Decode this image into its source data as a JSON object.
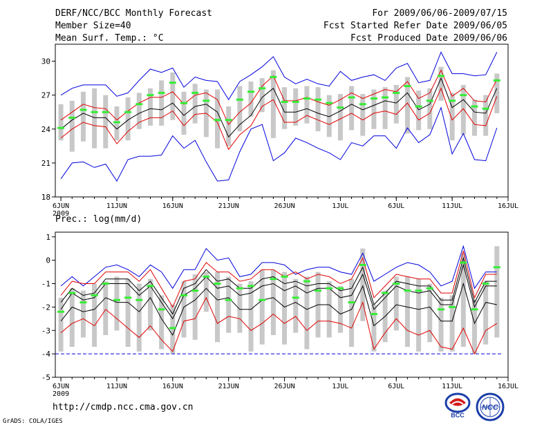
{
  "header": {
    "line1": "DERF/NCC/BCC Monthly Forecast",
    "line2": "Member Size=40",
    "line3": "Mean Surf. Temp.: °C",
    "right1": "For 2009/06/06-2009/07/15",
    "right2": "Fcst Started Refer Date 2009/06/05",
    "right3": "Fcst Produced Date 2009/06/06"
  },
  "footer": {
    "url": "http://cmdp.ncc.cma.gov.cn",
    "credit": "GrADS: COLA/IGES"
  },
  "logos": {
    "bcc": "BCC",
    "ncc": "NCC"
  },
  "colors": {
    "box": "#c8c8c8",
    "median": "#000000",
    "quartile": "#e00000",
    "extreme": "#0000dd",
    "mean": "#33ee33",
    "floor": "#0000dd"
  },
  "chart_data": [
    {
      "type": "line",
      "title": "Mean Surf. Temp.: °C",
      "ylabel": "°C",
      "ylim": [
        18,
        31.5
      ],
      "yticks": [
        18,
        21,
        24,
        27,
        30
      ],
      "xlim": [
        0,
        40
      ],
      "xticks": [
        {
          "x": 0.5,
          "label": "6JUN"
        },
        {
          "x": 5.5,
          "label": "11JUN"
        },
        {
          "x": 10.5,
          "label": "16JUN"
        },
        {
          "x": 15.5,
          "label": "21JUN"
        },
        {
          "x": 20.5,
          "label": "26JUN"
        },
        {
          "x": 25.5,
          "label": "1JUL"
        },
        {
          "x": 30.5,
          "label": "6JUL"
        },
        {
          "x": 35.5,
          "label": "11JUL"
        },
        {
          "x": 40.5,
          "label": "16JUL"
        }
      ],
      "year_label": "2009",
      "series": [
        {
          "name": "median",
          "values": [
            24.0,
            24.8,
            25.4,
            25.0,
            25.0,
            24.0,
            24.8,
            25.4,
            25.8,
            25.7,
            26.3,
            25.2,
            26.0,
            26.2,
            25.5,
            23.3,
            24.4,
            25.2,
            26.8,
            27.6,
            25.5,
            25.5,
            25.8,
            25.4,
            25.1,
            25.6,
            26.2,
            25.7,
            26.1,
            26.5,
            26.3,
            27.2,
            25.7,
            26.2,
            28.5,
            25.9,
            26.6,
            25.5,
            25.4,
            27.6
          ]
        },
        {
          "name": "upper_quartile",
          "values": [
            24.8,
            25.5,
            26.2,
            25.9,
            25.8,
            24.8,
            25.6,
            26.3,
            26.8,
            26.8,
            27.3,
            26.2,
            27.0,
            27.2,
            26.6,
            24.4,
            25.5,
            26.3,
            27.8,
            28.7,
            26.5,
            26.5,
            26.8,
            26.4,
            26.1,
            26.6,
            27.2,
            26.7,
            27.1,
            27.5,
            27.3,
            28.2,
            26.7,
            27.2,
            29.2,
            26.9,
            27.6,
            26.5,
            26.4,
            28.4
          ]
        },
        {
          "name": "lower_quartile",
          "values": [
            23.2,
            24.0,
            24.6,
            24.3,
            24.2,
            22.7,
            23.8,
            24.6,
            25.0,
            25.0,
            25.6,
            24.3,
            25.3,
            25.4,
            24.6,
            22.2,
            23.5,
            24.3,
            26.0,
            26.6,
            24.6,
            24.6,
            25.2,
            24.8,
            24.4,
            24.9,
            25.4,
            24.8,
            25.4,
            25.6,
            25.3,
            26.3,
            24.8,
            25.4,
            27.6,
            24.8,
            25.8,
            24.4,
            24.3,
            26.9
          ]
        },
        {
          "name": "maximum",
          "values": [
            27.0,
            27.6,
            27.9,
            27.9,
            27.9,
            26.9,
            27.2,
            28.3,
            29.3,
            29.0,
            29.4,
            27.7,
            28.6,
            28.3,
            28.2,
            26.6,
            28.2,
            28.8,
            29.5,
            30.4,
            28.6,
            28.0,
            28.4,
            28.0,
            27.8,
            29.1,
            28.3,
            28.6,
            28.8,
            28.3,
            29.4,
            29.8,
            28.1,
            28.3,
            30.8,
            28.9,
            28.9,
            28.7,
            28.8,
            30.8
          ]
        },
        {
          "name": "minimum",
          "values": [
            19.6,
            21.0,
            21.1,
            20.6,
            20.9,
            19.4,
            21.3,
            21.6,
            21.6,
            21.7,
            23.4,
            22.3,
            23.0,
            21.1,
            19.4,
            19.5,
            22.0,
            24.0,
            24.4,
            21.2,
            21.9,
            23.2,
            22.8,
            22.3,
            21.9,
            21.3,
            22.8,
            22.5,
            23.4,
            23.4,
            22.3,
            24.1,
            22.8,
            23.5,
            25.9,
            21.8,
            23.6,
            21.3,
            21.2,
            24.1
          ]
        },
        {
          "name": "ensemble_mean",
          "values": [
            24.1,
            25.0,
            25.7,
            25.5,
            25.5,
            24.6,
            25.5,
            26.2,
            27.0,
            27.2,
            28.1,
            26.3,
            27.2,
            26.5,
            24.8,
            24.8,
            26.6,
            27.3,
            27.6,
            28.6,
            26.4,
            26.4,
            26.7,
            26.6,
            26.3,
            25.9,
            26.8,
            26.2,
            26.7,
            26.8,
            27.2,
            27.8,
            26.0,
            26.5,
            28.7,
            26.5,
            27.0,
            26.0,
            25.8,
            28.3
          ]
        },
        {
          "name": "box_top",
          "values": [
            26.2,
            26.5,
            27.3,
            27.6,
            27.0,
            26.0,
            26.8,
            27.2,
            27.6,
            28.3,
            29.0,
            27.3,
            28.0,
            27.5,
            27.5,
            26.0,
            27.8,
            28.2,
            28.5,
            29.2,
            27.7,
            27.6,
            27.8,
            27.7,
            27.0,
            27.1,
            27.8,
            27.1,
            27.5,
            27.7,
            27.9,
            28.6,
            27.4,
            27.6,
            29.5,
            27.2,
            27.9,
            26.6,
            27.0,
            28.9
          ]
        },
        {
          "name": "box_bottom",
          "values": [
            23.0,
            22.0,
            22.9,
            22.3,
            22.3,
            23.0,
            23.0,
            24.0,
            24.3,
            24.3,
            24.8,
            23.5,
            24.5,
            23.3,
            22.3,
            22.5,
            23.8,
            25.1,
            25.5,
            23.2,
            24.0,
            24.3,
            24.5,
            23.8,
            23.3,
            23.0,
            23.9,
            23.4,
            24.0,
            24.0,
            24.5,
            23.6,
            23.9,
            24.0,
            26.5,
            23.0,
            23.5,
            23.4,
            23.4,
            25.4
          ]
        }
      ]
    },
    {
      "type": "line",
      "title": "Prec.: log(mm/d)",
      "ylabel": "log(mm/d)",
      "ylim": [
        -5,
        1.2
      ],
      "yticks": [
        -5,
        -4,
        -3,
        -2,
        -1,
        0,
        1
      ],
      "xlim": [
        0,
        40
      ],
      "xticks": [
        {
          "x": 0.5,
          "label": "6JUN"
        },
        {
          "x": 5.5,
          "label": "11JUN"
        },
        {
          "x": 10.5,
          "label": "16JUN"
        },
        {
          "x": 15.5,
          "label": "21JUN"
        },
        {
          "x": 20.5,
          "label": "26JUN"
        },
        {
          "x": 25.5,
          "label": "1JUL"
        },
        {
          "x": 30.5,
          "label": "6JUL"
        },
        {
          "x": 35.5,
          "label": "11JUL"
        },
        {
          "x": 40.5,
          "label": "16JUL"
        }
      ],
      "year_label": "2009",
      "floor_value": -4,
      "series": [
        {
          "name": "median",
          "values": [
            -2.1,
            -1.4,
            -1.7,
            -1.6,
            -1.0,
            -1.0,
            -1.0,
            -1.5,
            -1.1,
            -1.8,
            -2.5,
            -1.5,
            -1.2,
            -0.7,
            -1.2,
            -1.1,
            -1.5,
            -1.4,
            -1.1,
            -1.0,
            -1.3,
            -1.1,
            -1.4,
            -1.2,
            -1.2,
            -1.6,
            -1.5,
            -0.6,
            -2.1,
            -1.6,
            -1.1,
            -1.3,
            -1.4,
            -1.3,
            -1.9,
            -1.9,
            -0.2,
            -2.0,
            -1.1,
            -1.1
          ]
        },
        {
          "name": "upper_quartile",
          "values": [
            -1.8,
            -1.2,
            -1.5,
            -1.4,
            -0.8,
            -0.8,
            -0.8,
            -1.3,
            -0.9,
            -1.6,
            -2.3,
            -1.2,
            -1.0,
            -0.4,
            -0.9,
            -0.8,
            -1.2,
            -1.2,
            -0.8,
            -0.7,
            -1.0,
            -0.9,
            -1.1,
            -1.0,
            -1.0,
            -1.3,
            -1.2,
            -0.3,
            -1.9,
            -1.4,
            -0.9,
            -1.0,
            -1.1,
            -1.1,
            -1.7,
            -1.7,
            0.1,
            -1.8,
            -0.9,
            -0.9
          ]
        },
        {
          "name": "lower_quartile",
          "values": [
            -2.6,
            -2.0,
            -2.2,
            -2.1,
            -1.6,
            -1.8,
            -1.8,
            -2.2,
            -1.6,
            -2.5,
            -3.2,
            -2.0,
            -1.7,
            -1.2,
            -1.7,
            -1.6,
            -2.1,
            -2.1,
            -1.7,
            -1.6,
            -2.0,
            -1.8,
            -2.1,
            -1.9,
            -1.9,
            -2.3,
            -2.1,
            -1.1,
            -2.8,
            -2.4,
            -1.9,
            -2.0,
            -2.1,
            -2.0,
            -2.6,
            -2.6,
            -1.0,
            -2.7,
            -1.8,
            -1.9
          ]
        },
        {
          "name": "upper_line",
          "values": [
            -1.5,
            -0.9,
            -1.0,
            -1.0,
            -0.5,
            -0.5,
            -0.5,
            -0.9,
            -0.4,
            -1.2,
            -2.0,
            -0.9,
            -0.8,
            -0.1,
            -0.5,
            -0.5,
            -0.9,
            -0.8,
            -0.4,
            -0.4,
            -0.7,
            -0.5,
            -0.8,
            -0.6,
            -0.7,
            -1.0,
            -0.8,
            0.1,
            -1.6,
            -1.1,
            -0.6,
            -0.7,
            -0.8,
            -0.8,
            -1.4,
            -1.4,
            0.4,
            -1.6,
            -0.6,
            -0.6
          ]
        },
        {
          "name": "lower_line",
          "values": [
            -3.1,
            -2.7,
            -2.5,
            -2.8,
            -2.1,
            -2.5,
            -2.9,
            -3.3,
            -2.8,
            -3.4,
            -3.9,
            -2.6,
            -2.5,
            -1.6,
            -2.7,
            -2.4,
            -2.5,
            -3.0,
            -2.7,
            -2.3,
            -2.7,
            -2.4,
            -3.0,
            -2.6,
            -2.6,
            -2.7,
            -2.9,
            -1.8,
            -3.8,
            -3.1,
            -2.5,
            -3.0,
            -3.2,
            -3.0,
            -3.7,
            -3.8,
            -2.9,
            -4.0,
            -3.0,
            -2.7
          ]
        },
        {
          "name": "maximum",
          "values": [
            -1.1,
            -0.7,
            -1.1,
            -0.7,
            -0.3,
            -0.2,
            -0.4,
            -0.7,
            -0.2,
            -0.5,
            -1.2,
            -0.4,
            -0.4,
            0.5,
            0.0,
            0.1,
            -0.7,
            -0.6,
            -0.1,
            -0.1,
            -0.2,
            -0.6,
            -0.4,
            -0.3,
            -0.3,
            -0.5,
            -0.6,
            0.3,
            -0.9,
            -0.6,
            -0.3,
            -0.1,
            -0.2,
            -0.5,
            -1.1,
            -0.9,
            0.6,
            -1.2,
            -0.5,
            -0.5
          ]
        },
        {
          "name": "ensemble_mean",
          "values": [
            -2.2,
            -1.4,
            -1.8,
            -1.5,
            -1.0,
            -1.7,
            -1.6,
            -1.7,
            -1.1,
            -2.1,
            -2.9,
            -1.5,
            -1.3,
            -0.7,
            -1.0,
            -1.7,
            -1.2,
            -1.1,
            -1.7,
            -0.8,
            -0.7,
            -1.6,
            -0.9,
            -1.3,
            -1.2,
            -1.2,
            -1.8,
            -0.2,
            -2.3,
            -1.4,
            -1.0,
            -1.3,
            -1.3,
            -1.2,
            -2.1,
            -2.0,
            -0.1,
            -2.1,
            -1.0,
            -0.3
          ]
        },
        {
          "name": "box_top",
          "values": [
            -1.6,
            -1.2,
            -1.3,
            -1.0,
            -0.9,
            -0.7,
            -0.8,
            -1.0,
            -0.8,
            -1.5,
            -1.9,
            -0.9,
            -0.6,
            -0.5,
            -0.5,
            -0.7,
            -1.0,
            -0.9,
            -0.4,
            -0.4,
            -0.5,
            -0.8,
            -0.7,
            -0.5,
            -0.9,
            -1.1,
            -0.8,
            0.5,
            -1.9,
            -1.3,
            -0.7,
            -0.7,
            -0.8,
            -1.0,
            -1.6,
            -1.5,
            0.3,
            -1.7,
            -0.9,
            0.6
          ]
        },
        {
          "name": "box_bottom",
          "values": [
            -3.9,
            -3.7,
            -3.3,
            -3.7,
            -3.2,
            -3.0,
            -3.7,
            -3.9,
            -3.0,
            -3.8,
            -4.0,
            -3.3,
            -3.4,
            -2.2,
            -3.5,
            -3.1,
            -3.1,
            -3.9,
            -3.6,
            -3.2,
            -3.6,
            -3.1,
            -3.8,
            -3.3,
            -3.3,
            -3.1,
            -3.7,
            -2.6,
            -3.9,
            -3.5,
            -3.0,
            -3.7,
            -3.9,
            -3.5,
            -3.9,
            -3.9,
            -3.7,
            -4.0,
            -3.6,
            -3.3
          ]
        }
      ]
    }
  ]
}
